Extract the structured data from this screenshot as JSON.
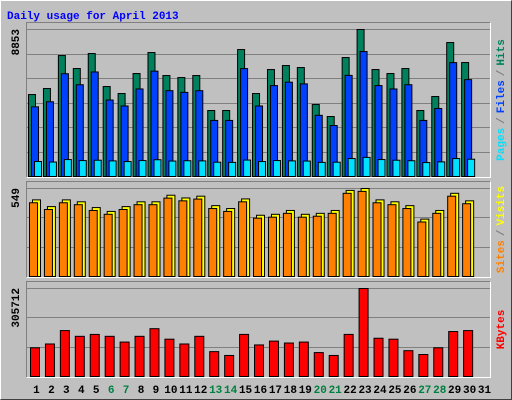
{
  "chart_data": [
    {
      "type": "bar",
      "title": "Daily usage for April 2013",
      "title_color": "#0000ff",
      "ylim": [
        0,
        8853
      ],
      "yticks": [
        8853
      ],
      "grid": true,
      "legend_separator": "/",
      "separator_color": "#808080",
      "series": [
        {
          "name": "Pages",
          "color": "#00e0ff",
          "values": [
            903,
            870,
            1020,
            960,
            980,
            940,
            900,
            960,
            1010,
            930,
            950,
            940,
            860,
            850,
            990,
            900,
            960,
            940,
            930,
            850,
            860,
            1080,
            1150,
            1020,
            980,
            950,
            840,
            880,
            1080,
            1040,
            null
          ]
        },
        {
          "name": "Files",
          "color": "#0040ff",
          "values": [
            4196,
            4503,
            6191,
            5527,
            6294,
            4605,
            4247,
            5271,
            6345,
            5168,
            5066,
            5168,
            3377,
            3377,
            6498,
            4247,
            5475,
            5680,
            5578,
            3684,
            3070,
            6089,
            7525,
            5475,
            5271,
            5527,
            3377,
            4094,
            6857,
            5834,
            null
          ]
        },
        {
          "name": "Hits",
          "color": "#00805c",
          "values": [
            4936,
            5298,
            7284,
            6502,
            7405,
            5418,
            4997,
            6201,
            7465,
            6080,
            5960,
            6080,
            3973,
            3973,
            7645,
            4997,
            6441,
            6682,
            6562,
            4334,
            3612,
            7164,
            8853,
            6441,
            6201,
            6502,
            3973,
            4816,
            8067,
            6863,
            null
          ]
        }
      ]
    },
    {
      "type": "bar",
      "ylim": [
        0,
        549
      ],
      "yticks": [
        549
      ],
      "grid": true,
      "legend_separator": "/",
      "separator_color": "#808080",
      "series": [
        {
          "name": "Sites",
          "color": "#ff8000",
          "values": [
            460,
            418,
            460,
            448,
            412,
            388,
            418,
            448,
            448,
            489,
            472,
            483,
            424,
            406,
            466,
            364,
            370,
            394,
            370,
            376,
            394,
            519,
            531,
            460,
            448,
            424,
            340,
            394,
            501,
            454,
            null
          ]
        },
        {
          "name": "Visits",
          "color": "#ffff00",
          "values": [
            478,
            436,
            478,
            466,
            430,
            406,
            436,
            466,
            466,
            507,
            490,
            501,
            442,
            424,
            484,
            382,
            388,
            412,
            388,
            394,
            412,
            537,
            549,
            478,
            466,
            442,
            358,
            412,
            519,
            472,
            null
          ]
        }
      ]
    },
    {
      "type": "bar",
      "ylim": [
        0,
        305712
      ],
      "yticks": [
        305712
      ],
      "grid": true,
      "categories": [
        "1",
        "2",
        "3",
        "4",
        "5",
        "6",
        "7",
        "8",
        "9",
        "10",
        "11",
        "12",
        "13",
        "14",
        "15",
        "16",
        "17",
        "18",
        "19",
        "20",
        "21",
        "22",
        "23",
        "24",
        "25",
        "26",
        "27",
        "28",
        "29",
        "30",
        "31"
      ],
      "weekends": [
        6,
        7,
        13,
        14,
        20,
        21,
        27,
        28
      ],
      "weekend_color": "#008040",
      "series": [
        {
          "name": "KBytes",
          "color": "#ff0000",
          "values": [
            99690,
            112982,
            159504,
            139566,
            146212,
            139566,
            119628,
            139566,
            166150,
            129597,
            112982,
            139566,
            86398,
            73106,
            146212,
            109659,
            122951,
            116305,
            119628,
            83075,
            73106,
            146212,
            305712,
            132920,
            129597,
            89721,
            76429,
            99690,
            156181,
            159504,
            null
          ]
        }
      ]
    }
  ]
}
